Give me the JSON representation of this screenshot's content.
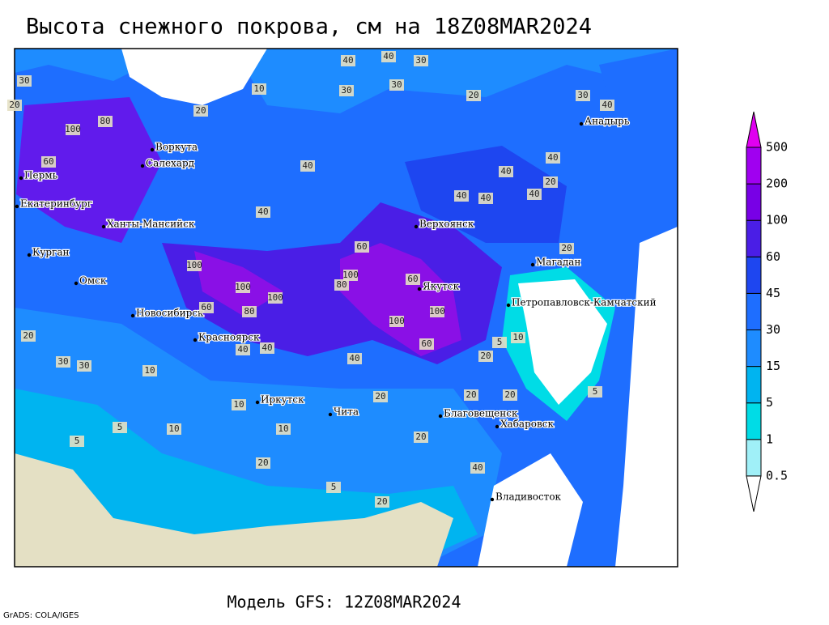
{
  "title": "Высота снежного покрова, см на 18Z08MAR2024",
  "subtitle": "Модель GFS: 12Z08MAR2024",
  "credit": "GrADS: COLA/IGES",
  "colorbar": {
    "levels": [
      0.5,
      1,
      5,
      15,
      30,
      45,
      60,
      100,
      200,
      500
    ],
    "colors": [
      "#ffffff",
      "#a0f0f8",
      "#00dce6",
      "#00b4f0",
      "#1e8cff",
      "#1e6eff",
      "#1e46f0",
      "#4a1ee6",
      "#7800e6",
      "#a000f0",
      "#e000f0"
    ]
  },
  "cities": [
    "Воркута",
    "Салехард",
    "Пермь",
    "Екатеринбург",
    "Ханты-Мансийск",
    "Курган",
    "Омск",
    "Новосибирск",
    "Красноярск",
    "Иркутск",
    "Чита",
    "Благовещенск",
    "Хабаровск",
    "Владивосток",
    "Якутск",
    "Верхоянск",
    "Магадан",
    "Петропавловск-Камчатский",
    "Анадырь"
  ],
  "contour_labels": [
    30,
    40,
    40,
    30,
    20,
    10,
    30,
    30,
    20,
    40,
    20,
    100,
    80,
    60,
    40,
    40,
    60,
    40,
    40,
    40,
    20,
    40,
    100,
    100,
    80,
    60,
    100,
    80,
    100,
    100,
    60,
    100,
    40,
    40,
    20,
    30,
    20,
    10,
    20,
    5,
    10,
    20,
    20,
    10,
    5,
    20,
    20,
    5,
    5,
    10,
    20,
    40,
    10,
    5,
    40,
    20,
    30,
    40,
    60,
    30
  ]
}
